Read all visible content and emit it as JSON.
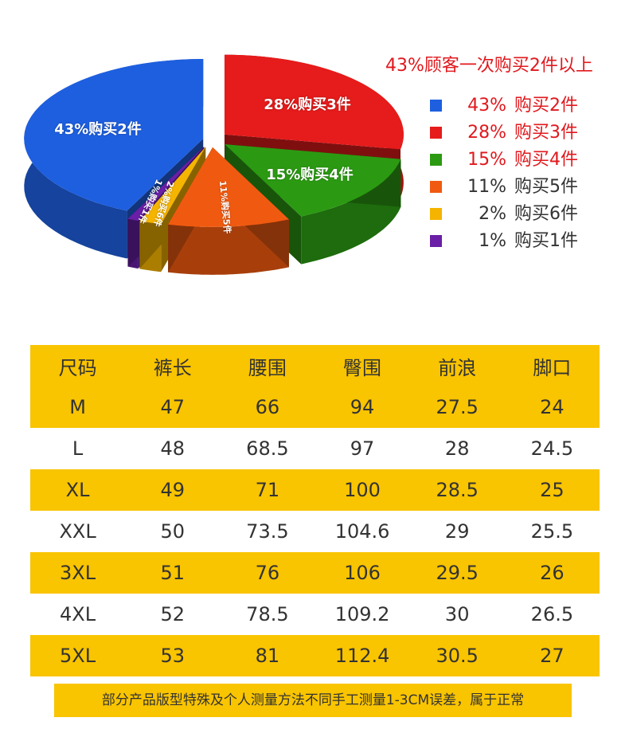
{
  "headline": "43%顾客一次购买2件以上",
  "chart_data": {
    "type": "pie",
    "slices": [
      {
        "label": "43%购买2件",
        "percent": 43,
        "legend_percent": "43%",
        "legend_text": "购买2件",
        "color": "#1e5fe0",
        "legend_text_color": "#e0191e"
      },
      {
        "label": "28%购买3件",
        "percent": 28,
        "legend_percent": "28%",
        "legend_text": "购买3件",
        "color": "#e61b1b",
        "legend_text_color": "#e0191e"
      },
      {
        "label": "15%购买4件",
        "percent": 15,
        "legend_percent": "15%",
        "legend_text": "购买4件",
        "color": "#2b9a12",
        "legend_text_color": "#e0191e"
      },
      {
        "label": "11%购买5件",
        "percent": 11,
        "legend_percent": "11%",
        "legend_text": "购买5件",
        "color": "#f05a10",
        "legend_text_color": "#333333"
      },
      {
        "label": "2%购买6件",
        "percent": 2,
        "legend_percent": "2%",
        "legend_text": "购买6件",
        "color": "#f5b400",
        "legend_text_color": "#333333"
      },
      {
        "label": "1%购买1件",
        "percent": 1,
        "legend_percent": "1%",
        "legend_text": "购买1件",
        "color": "#6a1fa6",
        "legend_text_color": "#333333"
      }
    ]
  },
  "table": {
    "headers": [
      "尺码",
      "裤长",
      "腰围",
      "臀围",
      "前浪",
      "脚口"
    ],
    "rows": [
      [
        "M",
        "47",
        "66",
        "94",
        "27.5",
        "24"
      ],
      [
        "L",
        "48",
        "68.5",
        "97",
        "28",
        "24.5"
      ],
      [
        "XL",
        "49",
        "71",
        "100",
        "28.5",
        "25"
      ],
      [
        "XXL",
        "50",
        "73.5",
        "104.6",
        "29",
        "25.5"
      ],
      [
        "3XL",
        "51",
        "76",
        "106",
        "29.5",
        "26"
      ],
      [
        "4XL",
        "52",
        "78.5",
        "109.2",
        "30",
        "26.5"
      ],
      [
        "5XL",
        "53",
        "81",
        "112.4",
        "30.5",
        "27"
      ]
    ]
  },
  "footnote": "部分产品版型特殊及个人测量方法不同手工测量1-3CM误差，属于正常"
}
